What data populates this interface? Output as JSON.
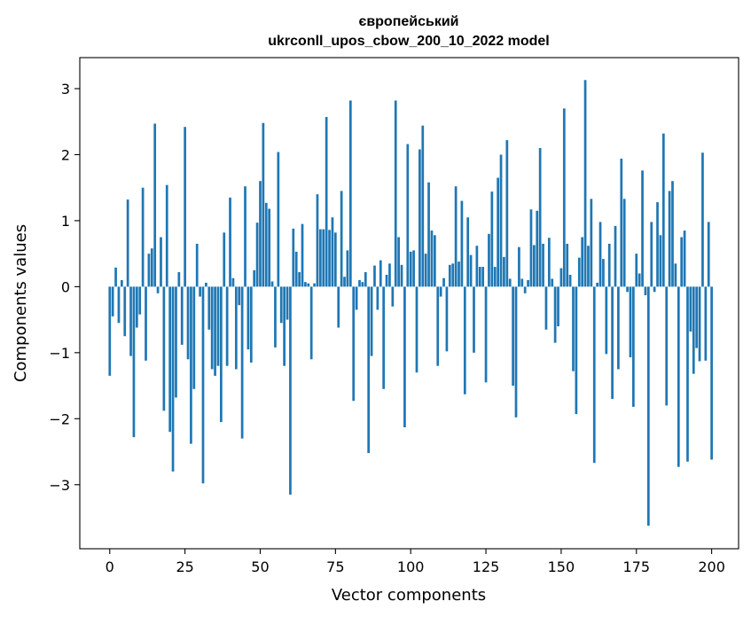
{
  "chart_data": {
    "type": "bar",
    "title_line1": "європейський",
    "title_line2": "ukrconll_upos_cbow_200_10_2022 model",
    "xlabel": "Vector components",
    "ylabel": "Components values",
    "xlim": [
      -9.95,
      208.95
    ],
    "ylim": [
      -3.97,
      3.47
    ],
    "xticks": [
      0,
      25,
      50,
      75,
      100,
      125,
      150,
      175,
      200
    ],
    "yticks": [
      -3,
      -2,
      -1,
      0,
      1,
      2,
      3
    ],
    "xtick_labels": [
      "0",
      "25",
      "50",
      "75",
      "100",
      "125",
      "150",
      "175",
      "200"
    ],
    "ytick_labels": [
      "−3",
      "−2",
      "−1",
      "0",
      "1",
      "2",
      "3"
    ],
    "grid": false,
    "bar_color": "#1f77b4",
    "values": [
      -1.35,
      -0.45,
      0.29,
      -0.55,
      0.1,
      -0.75,
      1.32,
      -1.05,
      -2.28,
      -0.62,
      -0.42,
      1.5,
      -1.12,
      0.5,
      0.58,
      2.47,
      -0.1,
      0.75,
      -1.88,
      1.54,
      -2.2,
      -2.8,
      -1.68,
      0.22,
      -0.88,
      2.42,
      -1.1,
      -2.38,
      -1.55,
      0.65,
      -0.15,
      -2.98,
      0.06,
      -0.65,
      -1.25,
      -1.35,
      -1.2,
      -2.05,
      0.82,
      -1.2,
      1.35,
      0.13,
      -1.25,
      -0.28,
      -2.3,
      1.52,
      -0.95,
      -1.15,
      0.25,
      0.97,
      1.6,
      2.48,
      1.27,
      1.18,
      0.08,
      -0.92,
      2.04,
      -0.55,
      -1.2,
      -0.5,
      -3.15,
      0.88,
      0.53,
      0.22,
      0.95,
      0.07,
      0.05,
      -1.1,
      0.05,
      1.4,
      0.87,
      0.87,
      2.57,
      0.86,
      1.05,
      0.82,
      -0.62,
      1.45,
      0.15,
      0.55,
      2.82,
      -1.73,
      -0.35,
      0.1,
      0.07,
      0.22,
      -2.52,
      -1.05,
      0.32,
      -0.35,
      0.4,
      -1.55,
      0.18,
      0.35,
      -0.3,
      2.82,
      0.75,
      0.33,
      -2.13,
      2.16,
      0.53,
      0.55,
      -1.3,
      2.08,
      2.44,
      0.5,
      1.58,
      0.85,
      0.78,
      -1.2,
      -0.15,
      0.13,
      -0.98,
      0.33,
      0.35,
      1.52,
      0.38,
      1.3,
      -1.63,
      1.05,
      0.48,
      -1.0,
      0.62,
      0.3,
      0.3,
      -1.45,
      0.8,
      1.44,
      0.3,
      1.65,
      2.0,
      0.45,
      2.22,
      0.12,
      -1.5,
      -1.98,
      0.6,
      0.12,
      -0.1,
      0.1,
      1.17,
      0.63,
      1.15,
      2.1,
      0.65,
      -0.65,
      0.74,
      0.12,
      -0.85,
      -0.6,
      0.28,
      2.7,
      0.65,
      0.18,
      -1.28,
      -1.93,
      0.44,
      0.75,
      3.13,
      0.62,
      1.33,
      -2.67,
      0.06,
      0.98,
      0.42,
      -1.02,
      0.65,
      -1.7,
      0.92,
      -1.25,
      1.94,
      1.33,
      -0.08,
      -1.07,
      -1.82,
      0.5,
      0.2,
      1.76,
      -0.13,
      -3.62,
      0.98,
      -0.08,
      1.28,
      0.78,
      2.32,
      -1.8,
      1.45,
      1.6,
      0.35,
      -2.73,
      0.75,
      0.85,
      -2.65,
      -0.68,
      -1.32,
      -0.93,
      -1.13,
      2.03,
      -1.12,
      0.98,
      -2.62
    ]
  }
}
